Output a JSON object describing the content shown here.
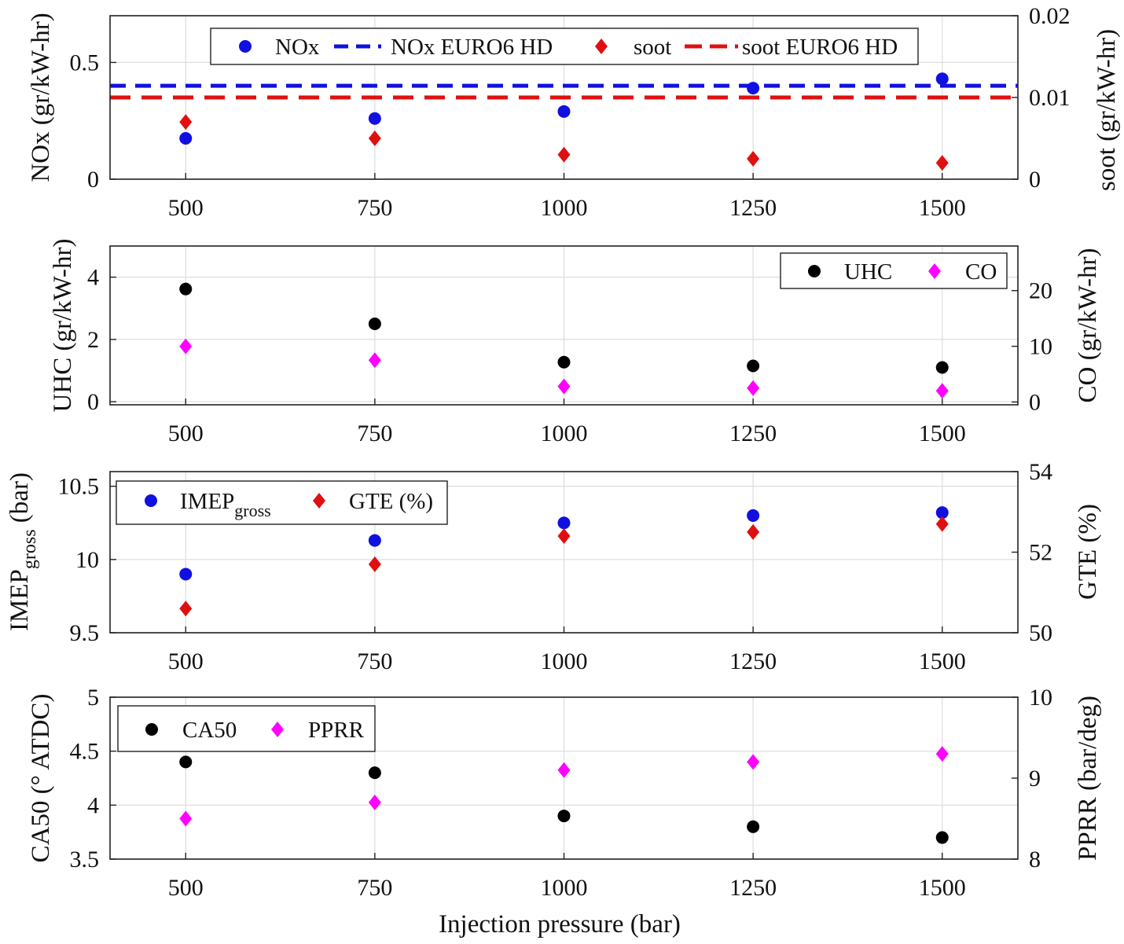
{
  "chart_data": [
    {
      "type": "scatter",
      "x": [
        500,
        750,
        1000,
        1250,
        1500
      ],
      "xlim": [
        400,
        1600
      ],
      "xticks": [
        "500",
        "750",
        "1000",
        "1250",
        "1500"
      ],
      "ylabel_left": "NOx (gr/kW-hr)",
      "ylabel_right": "soot (gr/kW-hr)",
      "ylim_left": [
        0,
        0.7
      ],
      "ylim_right": [
        0,
        0.02
      ],
      "yticks_left": [
        0,
        0.5
      ],
      "yticks_left_labels": [
        "0",
        "0.5"
      ],
      "yticks_right": [
        0,
        0.01,
        0.02
      ],
      "yticks_right_labels": [
        "0",
        "0.01",
        "0.02"
      ],
      "grid": true,
      "legend_position": "top",
      "series": [
        {
          "name": "NOx",
          "axis": "left",
          "marker": "circle",
          "color": "#1010e0",
          "values": [
            0.175,
            0.26,
            0.29,
            0.39,
            0.43
          ]
        },
        {
          "name": "NOx EURO6 HD",
          "axis": "left",
          "style": "dashed-line",
          "color": "#1010e0",
          "values": [
            0.4,
            0.4
          ]
        },
        {
          "name": "soot",
          "axis": "right",
          "marker": "diamond",
          "color": "#e01010",
          "values": [
            0.007,
            0.005,
            0.003,
            0.0025,
            0.002
          ]
        },
        {
          "name": "soot EURO6 HD",
          "axis": "right",
          "style": "dashed-line",
          "color": "#e01010",
          "values": [
            0.01,
            0.01
          ]
        }
      ]
    },
    {
      "type": "scatter",
      "x": [
        500,
        750,
        1000,
        1250,
        1500
      ],
      "xlim": [
        400,
        1600
      ],
      "xticks": [
        "500",
        "750",
        "1000",
        "1250",
        "1500"
      ],
      "ylabel_left": "UHC (gr/kW-hr)",
      "ylabel_right": "CO (gr/kW-hr)",
      "ylim_left": [
        -0.1,
        5
      ],
      "ylim_right": [
        -0.5,
        28
      ],
      "yticks_left": [
        0,
        2,
        4
      ],
      "yticks_left_labels": [
        "0",
        "2",
        "4"
      ],
      "yticks_right": [
        0,
        10,
        20
      ],
      "yticks_right_labels": [
        "0",
        "10",
        "20"
      ],
      "grid": true,
      "legend_position": "top-right",
      "series": [
        {
          "name": "UHC",
          "axis": "left",
          "marker": "circle",
          "color": "#000000",
          "values": [
            3.62,
            2.5,
            1.27,
            1.15,
            1.1
          ]
        },
        {
          "name": "CO",
          "axis": "right",
          "marker": "diamond",
          "color": "#ff00ff",
          "values": [
            10.0,
            7.5,
            2.8,
            2.5,
            2.0
          ]
        }
      ]
    },
    {
      "type": "scatter",
      "x": [
        500,
        750,
        1000,
        1250,
        1500
      ],
      "xlim": [
        400,
        1600
      ],
      "xticks": [
        "500",
        "750",
        "1000",
        "1250",
        "1500"
      ],
      "ylabel_left": "IMEP",
      "ylabel_left_sub": "gross",
      "ylabel_left_suffix": " (bar)",
      "ylabel_right": "GTE (%)",
      "ylim_left": [
        9.5,
        10.6
      ],
      "ylim_right": [
        50,
        54
      ],
      "yticks_left": [
        9.5,
        10,
        10.5
      ],
      "yticks_left_labels": [
        "9.5",
        "10",
        "10.5"
      ],
      "yticks_right": [
        50,
        52,
        54
      ],
      "yticks_right_labels": [
        "50",
        "52",
        "54"
      ],
      "grid": true,
      "legend_position": "top-left",
      "series": [
        {
          "name": "IMEP",
          "name_sub": "gross",
          "axis": "left",
          "marker": "circle",
          "color": "#1010e0",
          "values": [
            9.9,
            10.13,
            10.25,
            10.3,
            10.32
          ]
        },
        {
          "name": "GTE (%)",
          "axis": "right",
          "marker": "diamond",
          "color": "#e01010",
          "values": [
            50.6,
            51.7,
            52.4,
            52.5,
            52.7
          ]
        }
      ]
    },
    {
      "type": "scatter",
      "x": [
        500,
        750,
        1000,
        1250,
        1500
      ],
      "xlim": [
        400,
        1600
      ],
      "xticks": [
        "500",
        "750",
        "1000",
        "1250",
        "1500"
      ],
      "xlabel": "Injection pressure (bar)",
      "ylabel_left": "CA50 (° ATDC)",
      "ylabel_right": "PPRR (bar/deg)",
      "ylim_left": [
        3.5,
        5
      ],
      "ylim_right": [
        8,
        10
      ],
      "yticks_left": [
        3.5,
        4,
        4.5,
        5
      ],
      "yticks_left_labels": [
        "3.5",
        "4",
        "4.5",
        "5"
      ],
      "yticks_right": [
        8,
        9,
        10
      ],
      "yticks_right_labels": [
        "8",
        "9",
        "10"
      ],
      "grid": true,
      "legend_position": "top-left",
      "series": [
        {
          "name": "CA50",
          "axis": "left",
          "marker": "circle",
          "color": "#000000",
          "values": [
            4.4,
            4.3,
            3.9,
            3.8,
            3.7
          ]
        },
        {
          "name": "PPRR",
          "axis": "right",
          "marker": "diamond",
          "color": "#ff00ff",
          "values": [
            8.5,
            8.7,
            9.1,
            9.2,
            9.3
          ]
        }
      ]
    }
  ]
}
